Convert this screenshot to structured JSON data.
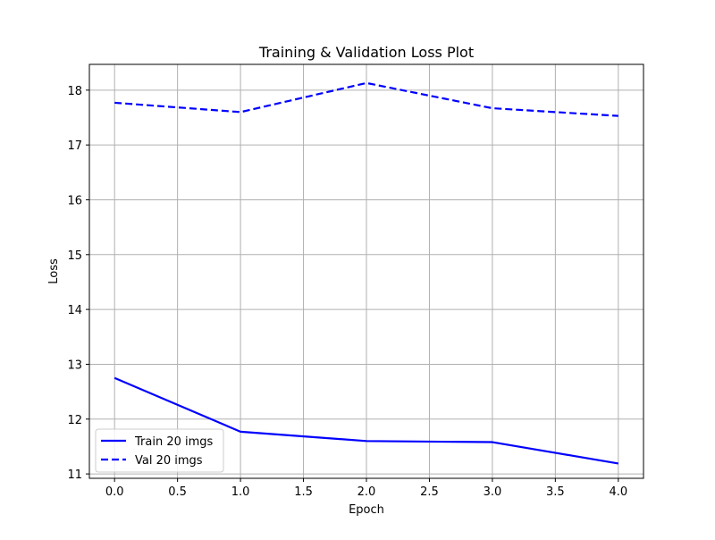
{
  "chart_data": {
    "type": "line",
    "title": "Training & Validation Loss Plot",
    "xlabel": "Epoch",
    "ylabel": "Loss",
    "x": [
      0,
      1,
      2,
      3,
      4
    ],
    "xlim": [
      -0.2,
      4.2
    ],
    "ylim": [
      10.92,
      18.47
    ],
    "xticks": [
      0.0,
      0.5,
      1.0,
      1.5,
      2.0,
      2.5,
      3.0,
      3.5,
      4.0
    ],
    "xtick_labels": [
      "0.0",
      "0.5",
      "1.0",
      "1.5",
      "2.0",
      "2.5",
      "3.0",
      "3.5",
      "4.0"
    ],
    "yticks": [
      11,
      12,
      13,
      14,
      15,
      16,
      17,
      18
    ],
    "ytick_labels": [
      "11",
      "12",
      "13",
      "14",
      "15",
      "16",
      "17",
      "18"
    ],
    "grid": true,
    "legend_position": "lower-left",
    "series": [
      {
        "name": "Train 20 imgs",
        "values": [
          12.75,
          11.77,
          11.6,
          11.58,
          11.19
        ],
        "color": "#0000ff",
        "style": "solid"
      },
      {
        "name": "Val 20 imgs",
        "values": [
          17.77,
          17.6,
          18.13,
          17.67,
          17.53
        ],
        "color": "#0000ff",
        "style": "dashed"
      }
    ]
  }
}
